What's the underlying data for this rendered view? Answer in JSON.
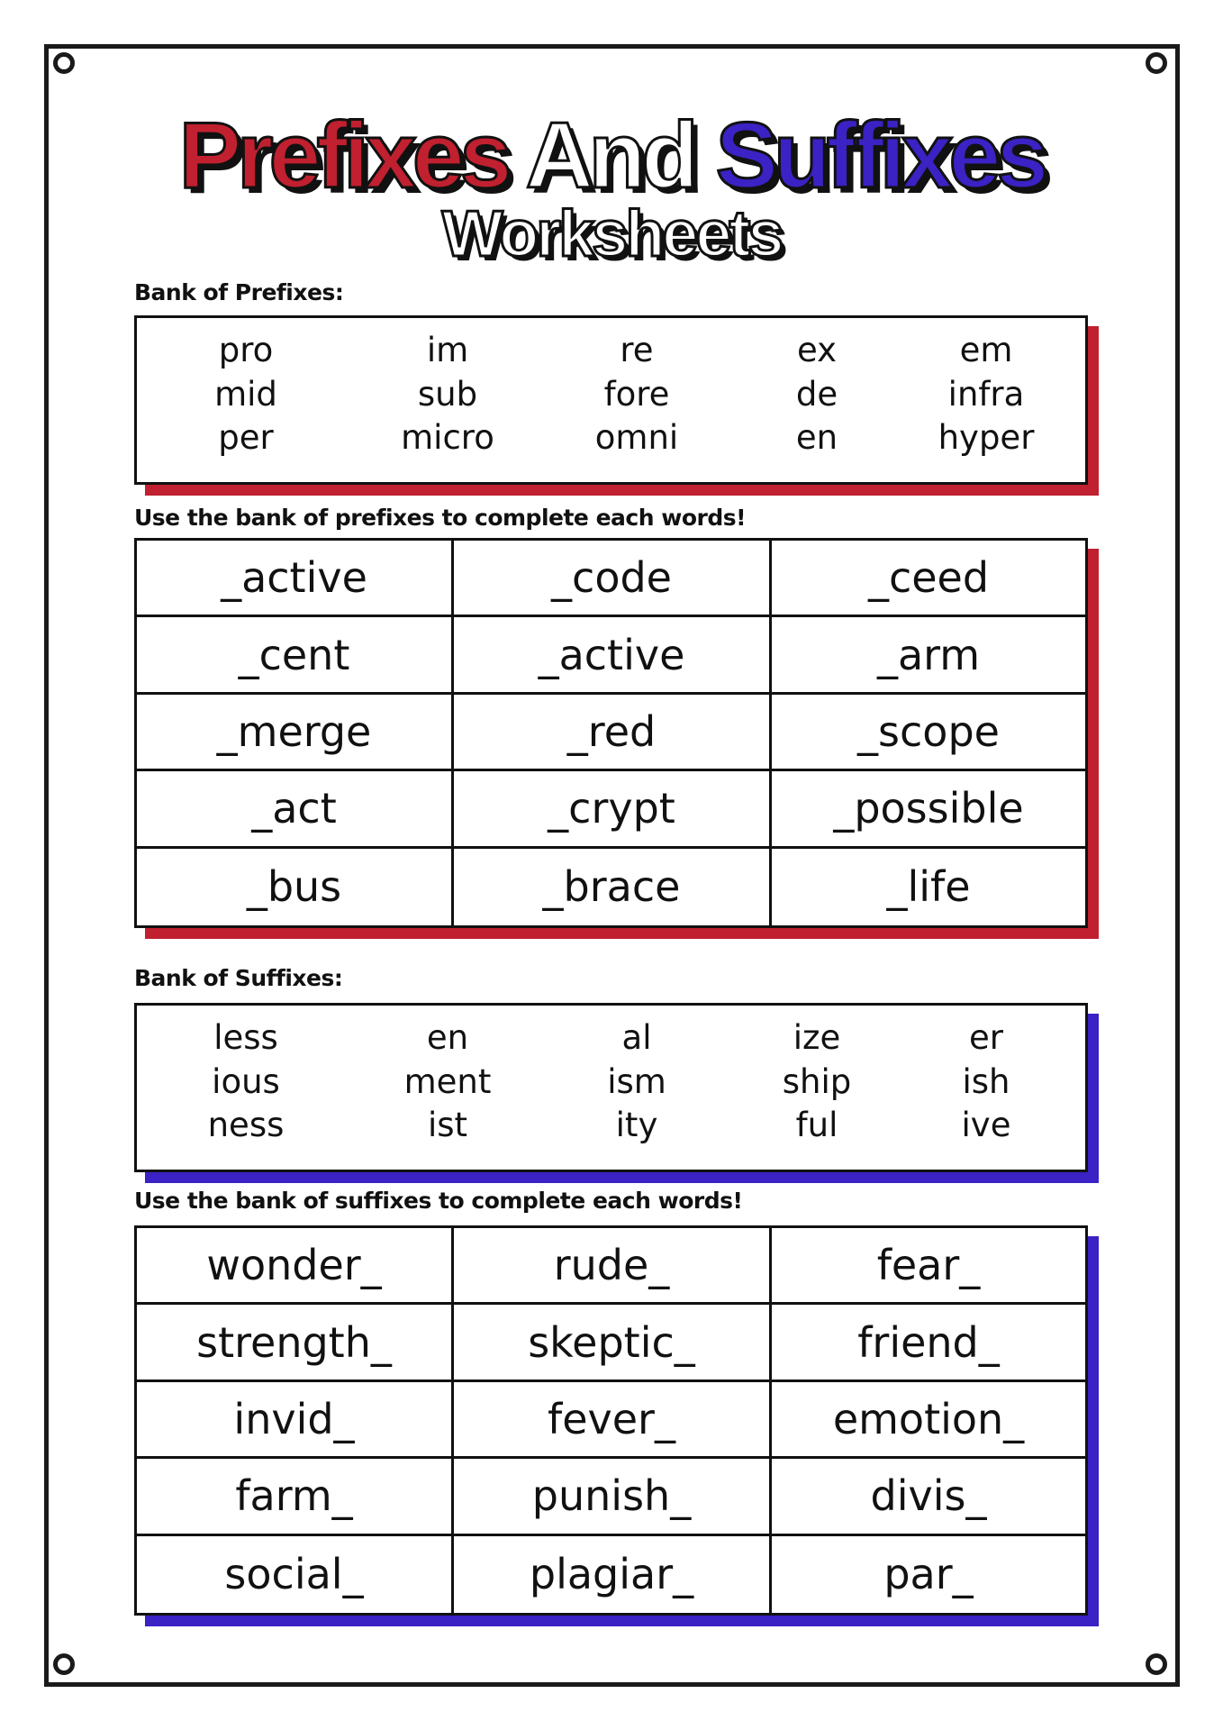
{
  "title": {
    "part1": "Prefixes",
    "part2": "And",
    "part3": "Suffixes",
    "subtitle": "Worksheets"
  },
  "colors": {
    "prefix_accent": "#c0202f",
    "suffix_accent": "#3a22c4",
    "and_color": "#ffffff"
  },
  "prefix_bank": {
    "label": "Bank of Prefixes:",
    "items": [
      "pro",
      "im",
      "re",
      "ex",
      "em",
      "mid",
      "sub",
      "fore",
      "de",
      "infra",
      "per",
      "micro",
      "omni",
      "en",
      "hyper"
    ]
  },
  "prefix_exercise": {
    "instruction": "Use the bank of prefixes to complete each words!",
    "cells": [
      "_active",
      "_code",
      "_ceed",
      "_cent",
      "_active",
      "_arm",
      "_merge",
      "_red",
      "_scope",
      "_act",
      "_crypt",
      "_possible",
      "_bus",
      "_brace",
      "_life"
    ]
  },
  "suffix_bank": {
    "label": "Bank of Suffixes:",
    "items": [
      "less",
      "en",
      "al",
      "ize",
      "er",
      "ious",
      "ment",
      "ism",
      "ship",
      "ish",
      "ness",
      "ist",
      "ity",
      "ful",
      "ive"
    ]
  },
  "suffix_exercise": {
    "instruction": "Use the bank of suffixes to complete each words!",
    "cells": [
      "wonder_",
      "rude_",
      "fear_",
      "strength_",
      "skeptic_",
      "friend_",
      "invid_",
      "fever_",
      "emotion_",
      "farm_",
      "punish_",
      "divis_",
      "social_",
      "plagiar_",
      "par_"
    ]
  }
}
